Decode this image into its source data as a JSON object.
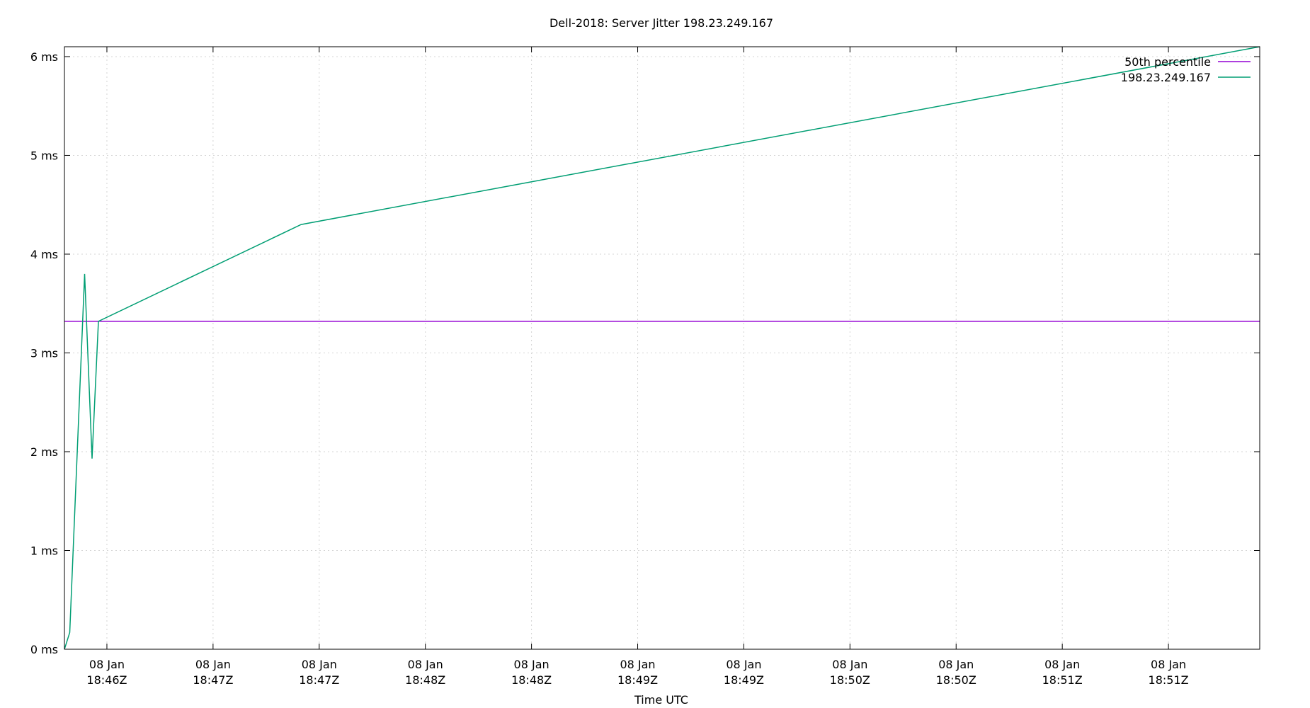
{
  "chart_data": {
    "type": "line",
    "title": "Dell-2018: Server Jitter 198.23.249.167",
    "xlabel": "Time UTC",
    "ylabel": "",
    "ylim": [
      0,
      6.1
    ],
    "xlim_minutes": [
      0,
      5.63
    ],
    "grid": true,
    "legend_position": "top-right",
    "y_ticks": [
      {
        "value": 0,
        "label": "0 ms"
      },
      {
        "value": 1,
        "label": "1 ms"
      },
      {
        "value": 2,
        "label": "2 ms"
      },
      {
        "value": 3,
        "label": "3 ms"
      },
      {
        "value": 4,
        "label": "4 ms"
      },
      {
        "value": 5,
        "label": "5 ms"
      },
      {
        "value": 6,
        "label": "6 ms"
      }
    ],
    "x_ticks": [
      {
        "value": 0.2,
        "line1": "08 Jan",
        "line2": "18:46Z"
      },
      {
        "value": 0.7,
        "line1": "08 Jan",
        "line2": "18:47Z"
      },
      {
        "value": 1.2,
        "line1": "08 Jan",
        "line2": "18:47Z"
      },
      {
        "value": 1.7,
        "line1": "08 Jan",
        "line2": "18:48Z"
      },
      {
        "value": 2.2,
        "line1": "08 Jan",
        "line2": "18:48Z"
      },
      {
        "value": 2.7,
        "line1": "08 Jan",
        "line2": "18:49Z"
      },
      {
        "value": 3.2,
        "line1": "08 Jan",
        "line2": "18:49Z"
      },
      {
        "value": 3.7,
        "line1": "08 Jan",
        "line2": "18:50Z"
      },
      {
        "value": 4.2,
        "line1": "08 Jan",
        "line2": "18:50Z"
      },
      {
        "value": 4.7,
        "line1": "08 Jan",
        "line2": "18:51Z"
      },
      {
        "value": 5.2,
        "line1": "08 Jan",
        "line2": "18:51Z"
      }
    ],
    "series": [
      {
        "name": "50th percentile",
        "color": "#9400d3",
        "points": [
          [
            0,
            3.32
          ],
          [
            5.63,
            3.32
          ]
        ]
      },
      {
        "name": "198.23.249.167",
        "color": "#009e73",
        "points": [
          [
            0,
            0
          ],
          [
            0.025,
            0.17
          ],
          [
            0.095,
            3.8
          ],
          [
            0.13,
            1.93
          ],
          [
            0.16,
            3.32
          ],
          [
            1.115,
            4.3
          ],
          [
            5.63,
            6.1
          ]
        ]
      }
    ]
  }
}
